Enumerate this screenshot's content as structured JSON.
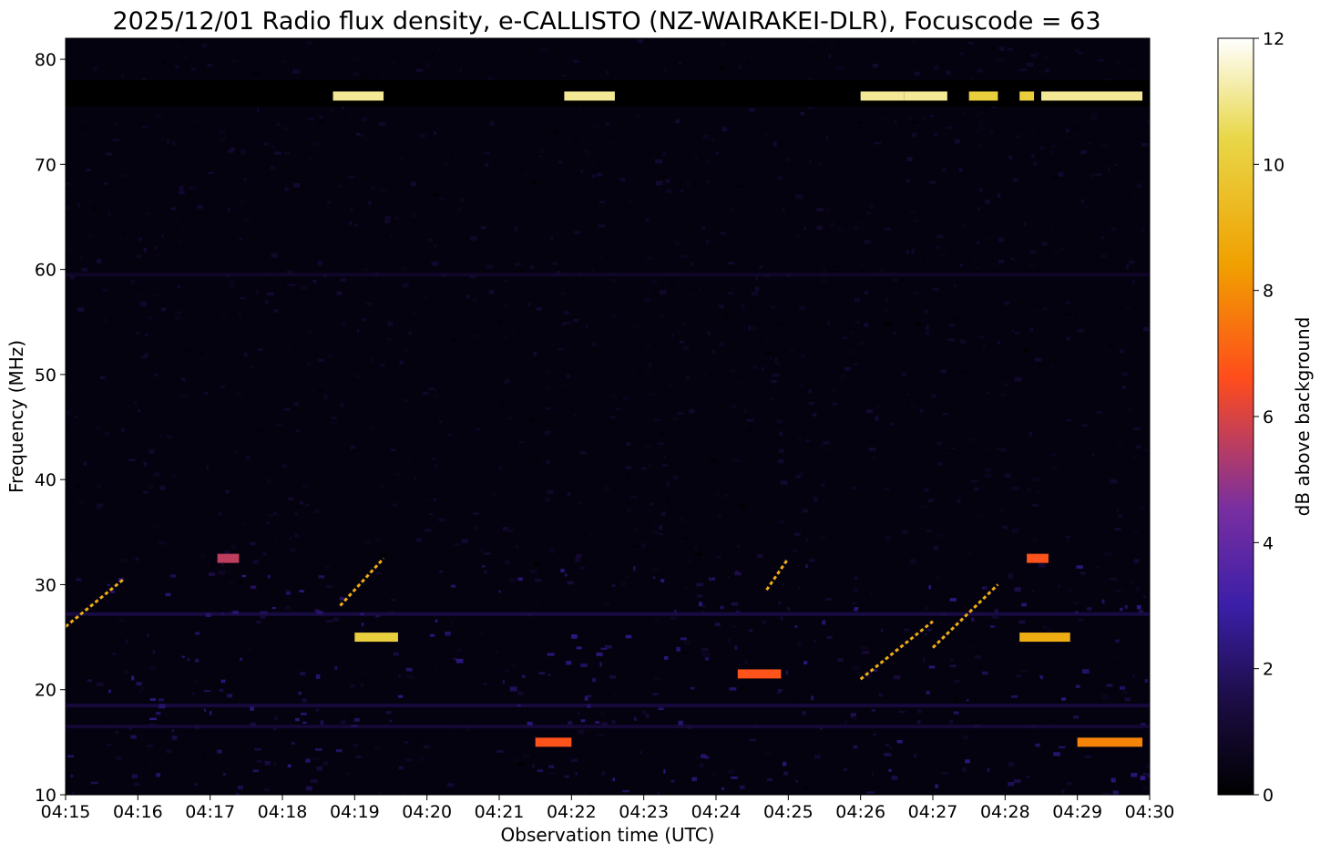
{
  "chart_data": {
    "type": "heatmap",
    "title": "2025/12/01 Radio flux density, e-CALLISTO (NZ-WAIRAKEI-DLR), Focuscode = 63",
    "xlabel": "Observation time (UTC)",
    "ylabel": "Frequency (MHz)",
    "colorbar_label": "dB above background",
    "x_ticks": [
      "04:15",
      "04:16",
      "04:17",
      "04:18",
      "04:19",
      "04:20",
      "04:21",
      "04:22",
      "04:23",
      "04:24",
      "04:25",
      "04:26",
      "04:27",
      "04:28",
      "04:29",
      "04:30"
    ],
    "y_ticks": [
      10,
      20,
      30,
      40,
      50,
      60,
      70,
      80
    ],
    "colorbar_ticks": [
      0,
      2,
      4,
      6,
      8,
      10,
      12
    ],
    "xlim_minutes": [
      0,
      15
    ],
    "ylim": [
      10,
      82
    ],
    "clim": [
      0,
      12
    ],
    "colormap": [
      "#000000",
      "#1b0c41",
      "#3b1fa8",
      "#7a2fa0",
      "#ff4c1c",
      "#f0a000",
      "#e8d84a",
      "#ffffff"
    ],
    "bright_bursts": [
      {
        "freq": 76.5,
        "t_start": 3.7,
        "t_end": 4.4,
        "level": 11
      },
      {
        "freq": 76.5,
        "t_start": 6.9,
        "t_end": 7.6,
        "level": 11
      },
      {
        "freq": 76.5,
        "t_start": 11.0,
        "t_end": 11.6,
        "level": 11
      },
      {
        "freq": 76.5,
        "t_start": 11.6,
        "t_end": 12.2,
        "level": 11
      },
      {
        "freq": 76.5,
        "t_start": 12.5,
        "t_end": 12.9,
        "level": 10
      },
      {
        "freq": 76.5,
        "t_start": 13.2,
        "t_end": 13.4,
        "level": 10
      },
      {
        "freq": 76.5,
        "t_start": 13.5,
        "t_end": 14.9,
        "level": 11
      },
      {
        "freq": 32.5,
        "t_start": 2.1,
        "t_end": 2.4,
        "level": 6
      },
      {
        "freq": 32.5,
        "t_start": 13.3,
        "t_end": 13.6,
        "level": 7
      },
      {
        "freq": 25.0,
        "t_start": 4.0,
        "t_end": 4.6,
        "level": 10
      },
      {
        "freq": 25.0,
        "t_start": 13.2,
        "t_end": 13.9,
        "level": 9
      },
      {
        "freq": 21.5,
        "t_start": 9.3,
        "t_end": 9.9,
        "level": 7
      },
      {
        "freq": 15.0,
        "t_start": 6.5,
        "t_end": 7.0,
        "level": 7
      },
      {
        "freq": 15.0,
        "t_start": 14.0,
        "t_end": 14.9,
        "level": 8
      }
    ],
    "drifting_bursts": [
      {
        "t_start": 0.0,
        "f_start": 26.0,
        "t_end": 0.8,
        "f_end": 30.5
      },
      {
        "t_start": 11.0,
        "f_start": 21.0,
        "t_end": 12.0,
        "f_end": 26.5
      },
      {
        "t_start": 12.0,
        "f_start": 24.0,
        "t_end": 12.9,
        "f_end": 30.0
      },
      {
        "t_start": 3.8,
        "f_start": 28.0,
        "t_end": 4.4,
        "f_end": 32.5
      },
      {
        "t_start": 9.7,
        "f_start": 29.5,
        "t_end": 10.0,
        "f_end": 32.5
      }
    ]
  }
}
